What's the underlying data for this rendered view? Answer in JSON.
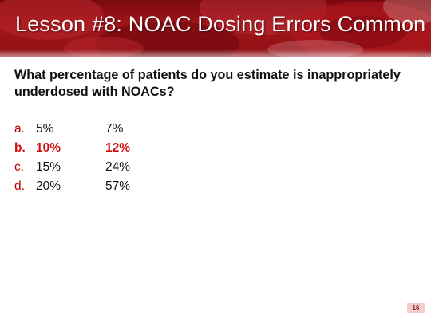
{
  "slide": {
    "title": "Lesson #8: NOAC Dosing Errors Common",
    "question": "What percentage of patients do you estimate is inappropriately underdosed with NOACs?",
    "options": [
      {
        "letter": "a.",
        "value1": "5%",
        "value2": "7%",
        "highlighted": false
      },
      {
        "letter": "b.",
        "value1": "10%",
        "value2": "12%",
        "highlighted": true
      },
      {
        "letter": "c.",
        "value1": "15%",
        "value2": "24%",
        "highlighted": false
      },
      {
        "letter": "d.",
        "value1": "20%",
        "value2": "57%",
        "highlighted": false
      }
    ],
    "page_number": "16"
  },
  "colors": {
    "banner": "#a3161b",
    "answer_highlight": "#d01010",
    "option_letter": "#c00000",
    "page_badge": "#f4cccc"
  }
}
